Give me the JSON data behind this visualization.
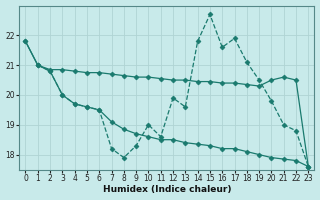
{
  "xlabel": "Humidex (Indice chaleur)",
  "bg_color": "#c8eaea",
  "grid_color": "#b0d4d4",
  "line_color": "#1a7a6e",
  "xlim": [
    -0.5,
    23.5
  ],
  "ylim": [
    17.5,
    23.0
  ],
  "xticks": [
    0,
    1,
    2,
    3,
    4,
    5,
    6,
    7,
    8,
    9,
    10,
    11,
    12,
    13,
    14,
    15,
    16,
    17,
    18,
    19,
    20,
    21,
    22,
    23
  ],
  "yticks": [
    18,
    19,
    20,
    21,
    22
  ],
  "series": [
    {
      "x": [
        0,
        1,
        2,
        3,
        4,
        5,
        6,
        7,
        8,
        9,
        10,
        11,
        12,
        13,
        14,
        15,
        16,
        17,
        18,
        19,
        20,
        21,
        22,
        23
      ],
      "y": [
        21.8,
        21.0,
        20.85,
        20.85,
        20.8,
        20.75,
        20.75,
        20.7,
        20.65,
        20.6,
        20.6,
        20.55,
        20.5,
        20.5,
        20.45,
        20.45,
        20.4,
        20.4,
        20.35,
        20.3,
        20.5,
        20.6,
        20.5,
        17.6
      ],
      "marker": "D",
      "markersize": 2.5,
      "linestyle": "-",
      "linewidth": 0.9
    },
    {
      "x": [
        0,
        1,
        2,
        3,
        4,
        5,
        6,
        7,
        8,
        9,
        10,
        11,
        12,
        13,
        14,
        15,
        16,
        17,
        18,
        19,
        20,
        21,
        22,
        23
      ],
      "y": [
        21.8,
        21.0,
        20.8,
        20.0,
        19.7,
        19.6,
        19.5,
        19.1,
        18.85,
        18.7,
        18.6,
        18.5,
        18.5,
        18.4,
        18.35,
        18.3,
        18.2,
        18.2,
        18.1,
        18.0,
        17.9,
        17.85,
        17.8,
        17.6
      ],
      "marker": "D",
      "markersize": 2.5,
      "linestyle": "-",
      "linewidth": 0.9
    },
    {
      "x": [
        1,
        2,
        3,
        4,
        5,
        6,
        7,
        8,
        9,
        10,
        11,
        12,
        13,
        14,
        15,
        16,
        17,
        18,
        19,
        20,
        21,
        22,
        23
      ],
      "y": [
        21.0,
        20.8,
        20.0,
        19.7,
        19.6,
        19.5,
        18.2,
        17.9,
        18.3,
        19.0,
        18.6,
        19.9,
        19.6,
        21.8,
        22.7,
        21.6,
        21.9,
        21.1,
        20.5,
        19.8,
        19.0,
        18.8,
        17.6
      ],
      "marker": "D",
      "markersize": 2.5,
      "linestyle": "--",
      "linewidth": 0.9
    }
  ]
}
